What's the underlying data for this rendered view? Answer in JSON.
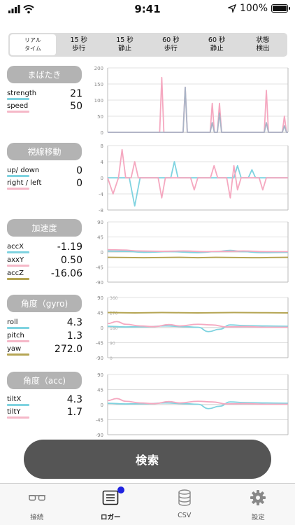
{
  "status_bar": {
    "time": "9:41",
    "battery": "100%"
  },
  "segments": [
    {
      "label": "リアル\nタイム",
      "active": true
    },
    {
      "label": "15 秒\n歩行"
    },
    {
      "label": "15 秒\n静止"
    },
    {
      "label": "60 秒\n歩行"
    },
    {
      "label": "60 秒\n静止"
    },
    {
      "label": "状態\n検出"
    }
  ],
  "sections": {
    "blink": {
      "title": "まばたき",
      "rows": [
        {
          "label": "strength",
          "value": "21",
          "color": "#7fd3e0"
        },
        {
          "label": "speed",
          "value": "50",
          "color": "#f5b8c8"
        }
      ]
    },
    "eye": {
      "title": "視線移動",
      "rows": [
        {
          "label": "up/ down",
          "value": "0",
          "color": "#7fd3e0"
        },
        {
          "label": "right / left",
          "value": "0",
          "color": "#f5b8c8"
        }
      ]
    },
    "accel": {
      "title": "加速度",
      "rows": [
        {
          "label": "accX",
          "value": "-1.19",
          "color": "#7fd3e0"
        },
        {
          "label": "axxY",
          "value": "0.50",
          "color": "#f5b8c8"
        },
        {
          "label": "accZ",
          "value": "-16.06",
          "color": "#b5a554"
        }
      ]
    },
    "gyro": {
      "title": "角度（gyro)",
      "rows": [
        {
          "label": "roll",
          "value": "4.3",
          "color": "#7fd3e0"
        },
        {
          "label": "pitch",
          "value": "1.3",
          "color": "#f5b8c8"
        },
        {
          "label": "yaw",
          "value": "272.0",
          "color": "#b5a554"
        }
      ]
    },
    "tilt": {
      "title": "角度（acc)",
      "rows": [
        {
          "label": "tiltX",
          "value": "4.3",
          "color": "#7fd3e0"
        },
        {
          "label": "tiltY",
          "value": "1.7",
          "color": "#f5b8c8"
        }
      ]
    }
  },
  "chart_data": [
    {
      "id": "blink",
      "type": "line",
      "ylim": [
        0,
        200
      ],
      "yticks": [
        "200",
        "150",
        "100",
        "50",
        "0"
      ],
      "series": [
        {
          "color": "#f5a8c0",
          "spikes": [
            [
              0.3,
              170
            ],
            [
              0.43,
              140
            ],
            [
              0.58,
              90
            ],
            [
              0.62,
              90
            ],
            [
              0.88,
              130
            ],
            [
              0.98,
              50
            ]
          ]
        },
        {
          "color": "#a9b4c6",
          "spikes": [
            [
              0.43,
              140
            ],
            [
              0.58,
              30
            ],
            [
              0.62,
              60
            ],
            [
              0.88,
              30
            ],
            [
              0.98,
              20
            ]
          ]
        }
      ]
    },
    {
      "id": "eye",
      "type": "line",
      "ylim": [
        -8,
        8
      ],
      "yticks": [
        "8",
        "4",
        "0",
        "-4",
        "-8"
      ],
      "series": [
        {
          "color": "#7fd3e0",
          "points": [
            [
              0,
              0
            ],
            [
              0.12,
              0
            ],
            [
              0.15,
              -7
            ],
            [
              0.18,
              0
            ],
            [
              0.35,
              0
            ],
            [
              0.37,
              4
            ],
            [
              0.39,
              0
            ],
            [
              0.7,
              0
            ],
            [
              0.72,
              3
            ],
            [
              0.74,
              0
            ],
            [
              0.78,
              0
            ],
            [
              0.8,
              2
            ],
            [
              0.82,
              0
            ],
            [
              1,
              0
            ]
          ]
        },
        {
          "color": "#f5a8c0",
          "points": [
            [
              0,
              0
            ],
            [
              0.03,
              -4
            ],
            [
              0.06,
              0
            ],
            [
              0.08,
              7
            ],
            [
              0.1,
              0
            ],
            [
              0.13,
              0
            ],
            [
              0.15,
              4
            ],
            [
              0.17,
              0
            ],
            [
              0.28,
              0
            ],
            [
              0.3,
              -5
            ],
            [
              0.32,
              0
            ],
            [
              0.46,
              0
            ],
            [
              0.48,
              -3
            ],
            [
              0.5,
              0
            ],
            [
              0.57,
              0
            ],
            [
              0.59,
              3
            ],
            [
              0.61,
              0
            ],
            [
              0.66,
              0
            ],
            [
              0.68,
              -5
            ],
            [
              0.7,
              3
            ],
            [
              0.72,
              -3
            ],
            [
              0.74,
              0
            ],
            [
              0.84,
              0
            ],
            [
              0.86,
              -3
            ],
            [
              0.88,
              0
            ],
            [
              1,
              0
            ]
          ]
        }
      ]
    },
    {
      "id": "accel",
      "type": "line",
      "ylim": [
        -90,
        90
      ],
      "yticks": [
        "90",
        "45",
        "0",
        "-45",
        "-90"
      ],
      "series": [
        {
          "color": "#7fd3e0",
          "points": [
            [
              0,
              3
            ],
            [
              0.1,
              2
            ],
            [
              0.2,
              -1
            ],
            [
              0.35,
              1
            ],
            [
              0.5,
              -2
            ],
            [
              0.6,
              1
            ],
            [
              0.68,
              5
            ],
            [
              0.75,
              1
            ],
            [
              0.85,
              -2
            ],
            [
              1,
              -1
            ]
          ]
        },
        {
          "color": "#f5a8c0",
          "points": [
            [
              0,
              7
            ],
            [
              0.08,
              6
            ],
            [
              0.18,
              3
            ],
            [
              0.3,
              2
            ],
            [
              0.42,
              3
            ],
            [
              0.55,
              1
            ],
            [
              0.65,
              2
            ],
            [
              0.75,
              3
            ],
            [
              0.88,
              1
            ],
            [
              1,
              1
            ]
          ]
        },
        {
          "color": "#b5a554",
          "points": [
            [
              0,
              -16
            ],
            [
              0.2,
              -17
            ],
            [
              0.4,
              -16
            ],
            [
              0.5,
              -17
            ],
            [
              0.6,
              -16
            ],
            [
              0.8,
              -17
            ],
            [
              1,
              -16
            ]
          ]
        }
      ]
    },
    {
      "id": "gyro",
      "type": "line",
      "ylim": [
        -90,
        90
      ],
      "yticks": [
        "90",
        "45",
        "0",
        "-45",
        "-90"
      ],
      "yticks_secondary": [
        "360",
        "270",
        "180",
        "90",
        "0"
      ],
      "series": [
        {
          "color": "#7fd3e0",
          "points": [
            [
              0,
              4
            ],
            [
              0.1,
              2
            ],
            [
              0.22,
              3
            ],
            [
              0.32,
              5
            ],
            [
              0.42,
              3
            ],
            [
              0.5,
              1
            ],
            [
              0.56,
              -12
            ],
            [
              0.62,
              -5
            ],
            [
              0.68,
              8
            ],
            [
              0.76,
              6
            ],
            [
              0.86,
              5
            ],
            [
              1,
              4
            ]
          ]
        },
        {
          "color": "#f5a8c0",
          "points": [
            [
              0,
              12
            ],
            [
              0.05,
              18
            ],
            [
              0.1,
              10
            ],
            [
              0.18,
              5
            ],
            [
              0.26,
              3
            ],
            [
              0.34,
              9
            ],
            [
              0.4,
              5
            ],
            [
              0.5,
              10
            ],
            [
              0.58,
              8
            ],
            [
              0.66,
              2
            ],
            [
              0.76,
              3
            ],
            [
              0.88,
              1
            ],
            [
              1,
              1
            ]
          ]
        },
        {
          "color": "#b5a554",
          "points": [
            [
              0,
              45
            ],
            [
              0.15,
              44
            ],
            [
              0.3,
              45
            ],
            [
              0.5,
              44
            ],
            [
              0.7,
              45
            ],
            [
              1,
              44
            ]
          ]
        }
      ]
    },
    {
      "id": "tilt",
      "type": "line",
      "ylim": [
        -90,
        90
      ],
      "yticks": [
        "90",
        "45",
        "0",
        "-45",
        "-90"
      ],
      "series": [
        {
          "color": "#7fd3e0",
          "points": [
            [
              0,
              4
            ],
            [
              0.1,
              2
            ],
            [
              0.22,
              3
            ],
            [
              0.32,
              5
            ],
            [
              0.42,
              3
            ],
            [
              0.5,
              1
            ],
            [
              0.56,
              -12
            ],
            [
              0.62,
              -5
            ],
            [
              0.68,
              8
            ],
            [
              0.76,
              6
            ],
            [
              0.86,
              5
            ],
            [
              1,
              4
            ]
          ]
        },
        {
          "color": "#f5a8c0",
          "points": [
            [
              0,
              12
            ],
            [
              0.05,
              18
            ],
            [
              0.1,
              10
            ],
            [
              0.18,
              5
            ],
            [
              0.26,
              3
            ],
            [
              0.34,
              9
            ],
            [
              0.4,
              5
            ],
            [
              0.5,
              10
            ],
            [
              0.58,
              8
            ],
            [
              0.66,
              2
            ],
            [
              0.76,
              3
            ],
            [
              0.88,
              1
            ],
            [
              1,
              1
            ]
          ]
        }
      ]
    }
  ],
  "search_button": {
    "label": "検索"
  },
  "tabs": [
    {
      "label": "接続",
      "icon": "glasses-icon"
    },
    {
      "label": "ロガー",
      "icon": "logger-icon",
      "active": true,
      "badge": true
    },
    {
      "label": "CSV",
      "icon": "database-icon"
    },
    {
      "label": "設定",
      "icon": "gear-icon"
    }
  ]
}
